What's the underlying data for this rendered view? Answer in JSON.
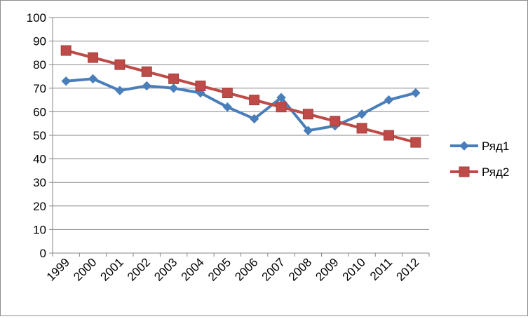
{
  "chart_data": {
    "type": "line",
    "title": "",
    "xlabel": "",
    "ylabel": "",
    "categories": [
      "1999",
      "2000",
      "2001",
      "2002",
      "2003",
      "2004",
      "2005",
      "2006",
      "2007",
      "2008",
      "2009",
      "2010",
      "2011",
      "2012"
    ],
    "ylim": [
      0,
      100
    ],
    "yticks": [
      0,
      10,
      20,
      30,
      40,
      50,
      60,
      70,
      80,
      90,
      100
    ],
    "grid": true,
    "legend": "right",
    "series": [
      {
        "name": "Ряд1",
        "color": "#4a7ebb",
        "marker": "diamond",
        "values": [
          73,
          74,
          69,
          71,
          70,
          68,
          62,
          57,
          66,
          52,
          54,
          59,
          65,
          68
        ]
      },
      {
        "name": "Ряд2",
        "color": "#be4b48",
        "marker": "square",
        "values": [
          86,
          83,
          80,
          77,
          74,
          71,
          68,
          65,
          62,
          59,
          56,
          53,
          50,
          47
        ]
      }
    ]
  }
}
